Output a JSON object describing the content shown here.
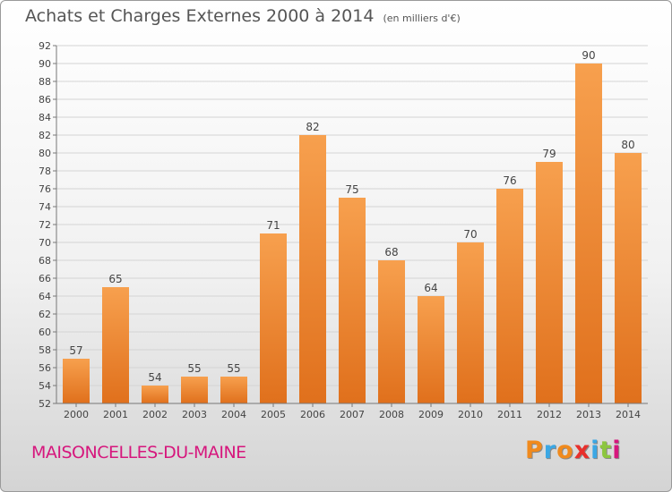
{
  "title": "Achats et Charges Externes 2000 à 2014",
  "subtitle": "(en milliers d'€)",
  "commune": "MAISONCELLES-DU-MAINE",
  "brand": {
    "letters": [
      "P",
      "r",
      "o",
      "x",
      "i",
      "t",
      "i"
    ],
    "colors": [
      "#f08a1d",
      "#3ba7e4",
      "#f08a1d",
      "#e8302c",
      "#3ba7e4",
      "#8cc63f",
      "#d6177d"
    ]
  },
  "chart_data": {
    "type": "bar",
    "categories": [
      "2000",
      "2001",
      "2002",
      "2003",
      "2004",
      "2005",
      "2006",
      "2007",
      "2008",
      "2009",
      "2010",
      "2011",
      "2012",
      "2013",
      "2014"
    ],
    "values": [
      57,
      65,
      54,
      55,
      55,
      71,
      82,
      75,
      68,
      64,
      70,
      76,
      79,
      90,
      80
    ],
    "ylim": [
      52,
      92
    ],
    "yticks": [
      52,
      54,
      56,
      58,
      60,
      62,
      64,
      66,
      68,
      70,
      72,
      74,
      76,
      78,
      80,
      82,
      84,
      86,
      88,
      90,
      92
    ],
    "grid": true,
    "bar_color_top": "#f7a04e",
    "bar_color_bottom": "#e0701c",
    "xlabel": "",
    "ylabel": ""
  }
}
